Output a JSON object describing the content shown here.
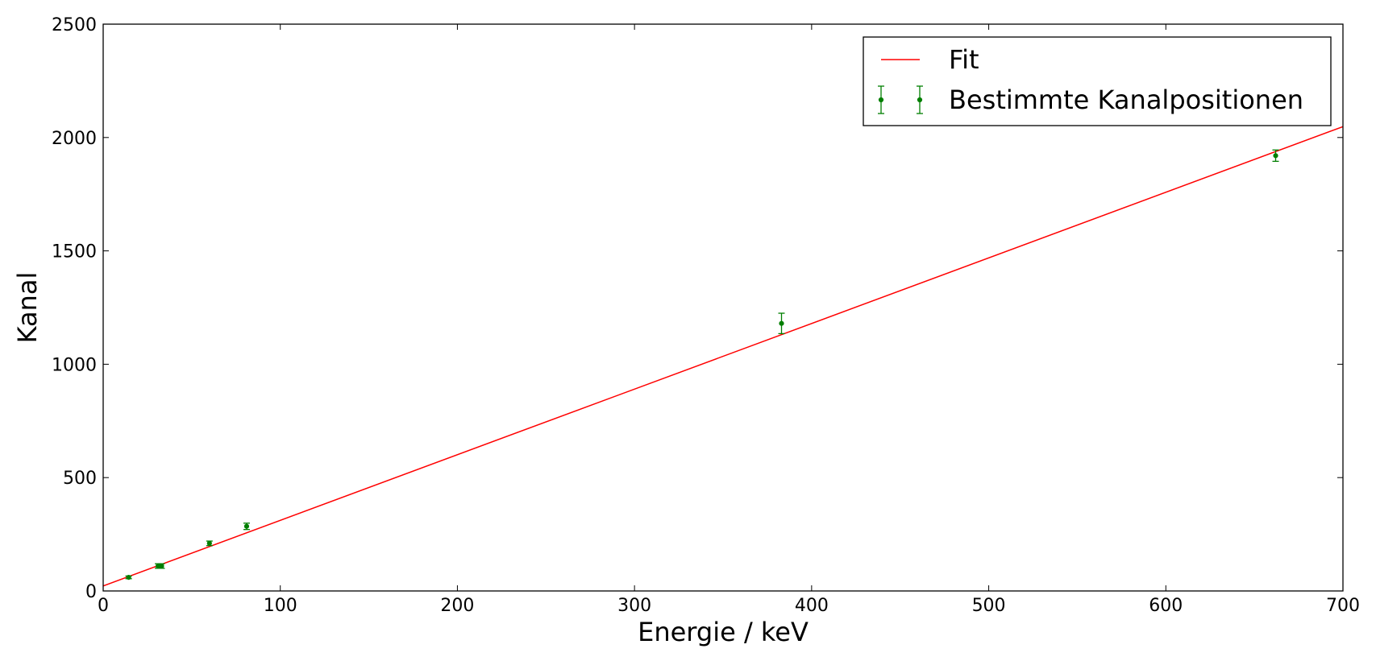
{
  "chart_data": {
    "type": "scatter",
    "title": "",
    "xlabel": "Energie / keV",
    "ylabel": "Kanal",
    "xlim": [
      0,
      700
    ],
    "ylim": [
      0,
      2500
    ],
    "xticks": [
      0,
      100,
      200,
      300,
      400,
      500,
      600,
      700
    ],
    "yticks": [
      0,
      500,
      1000,
      1500,
      2000,
      2500
    ],
    "grid": false,
    "legend_position": "top-right",
    "series": [
      {
        "name": "Fit",
        "kind": "line",
        "color": "#ff0000",
        "x": [
          0,
          700
        ],
        "y": [
          22,
          2048
        ]
      },
      {
        "name": "Bestimmte Kanalpositionen",
        "kind": "errorbar",
        "color": "#007f00",
        "points": [
          {
            "x": 14.4,
            "y": 60,
            "err": 6
          },
          {
            "x": 31,
            "y": 110,
            "err": 10
          },
          {
            "x": 33,
            "y": 110,
            "err": 10
          },
          {
            "x": 60,
            "y": 210,
            "err": 10
          },
          {
            "x": 81,
            "y": 285,
            "err": 14
          },
          {
            "x": 383,
            "y": 1180,
            "err": 45
          },
          {
            "x": 662,
            "y": 1920,
            "err": 25
          }
        ]
      }
    ]
  }
}
